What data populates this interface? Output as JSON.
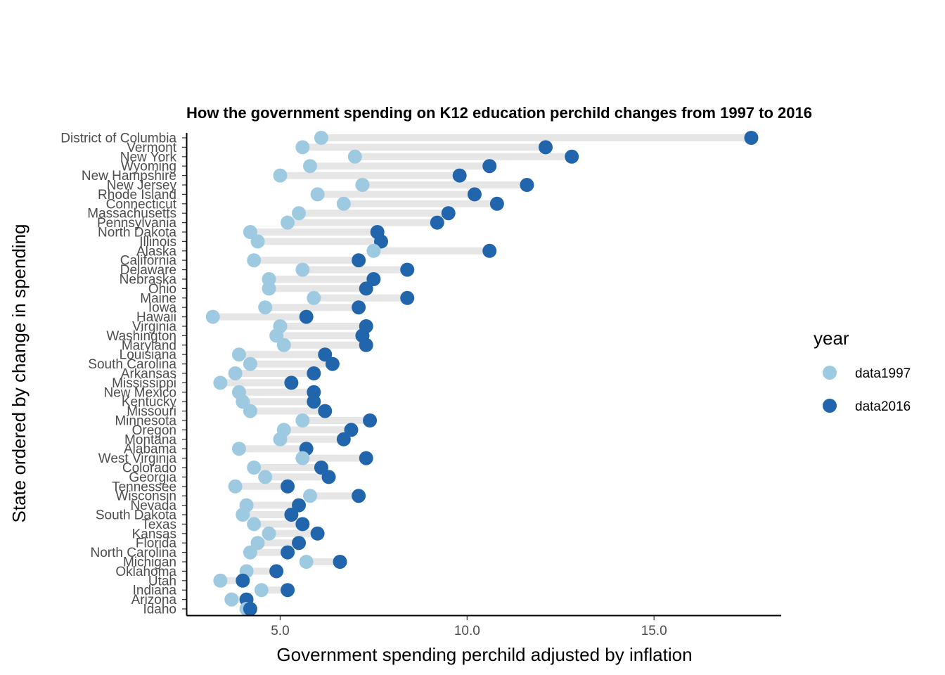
{
  "chart_data": {
    "type": "dumbbell",
    "title": "How the government spending on K12 education perchild changes from 1997 to 2016",
    "xlabel": "Government spending perchild adjusted by inflation",
    "ylabel": "State ordered by change in spending",
    "xlim": [
      2.5,
      18.4
    ],
    "x_ticks": [
      5,
      10,
      15
    ],
    "x_tick_labels": [
      "5.0",
      "10.0",
      "15.0"
    ],
    "grid": false,
    "legend": {
      "title": "year",
      "position": "right",
      "items": [
        {
          "label": "data1997",
          "color": "#9ecae1"
        },
        {
          "label": "data2016",
          "color": "#2166ac"
        }
      ]
    },
    "colors": {
      "data1997": "#9ecae1",
      "data2016": "#2166ac",
      "segment": "#e6e6e6"
    },
    "states": [
      "District of Columbia",
      "Vermont",
      "New York",
      "Wyoming",
      "New Hampshire",
      "New Jersey",
      "Rhode Island",
      "Connecticut",
      "Massachusetts",
      "Pennsylvania",
      "North Dakota",
      "Illinois",
      "Alaska",
      "California",
      "Delaware",
      "Nebraska",
      "Ohio",
      "Maine",
      "Iowa",
      "Hawaii",
      "Virginia",
      "Washington",
      "Maryland",
      "Louisiana",
      "South Carolina",
      "Arkansas",
      "Mississippi",
      "New Mexico",
      "Kentucky",
      "Missouri",
      "Minnesota",
      "Oregon",
      "Montana",
      "Alabama",
      "West Virginia",
      "Colorado",
      "Georgia",
      "Tennessee",
      "Wisconsin",
      "Nevada",
      "South Dakota",
      "Texas",
      "Kansas",
      "Florida",
      "North Carolina",
      "Michigan",
      "Oklahoma",
      "Utah",
      "Indiana",
      "Arizona",
      "Idaho"
    ],
    "series": [
      {
        "name": "data1997",
        "values": [
          6.1,
          5.6,
          7.0,
          5.8,
          5.0,
          7.2,
          6.0,
          6.7,
          5.5,
          5.2,
          4.2,
          4.4,
          7.5,
          4.3,
          5.6,
          4.7,
          4.7,
          5.9,
          4.6,
          3.2,
          5.0,
          4.9,
          5.1,
          3.9,
          4.2,
          3.8,
          3.4,
          3.9,
          4.0,
          4.2,
          5.6,
          5.1,
          5.0,
          3.9,
          5.6,
          4.3,
          4.6,
          3.8,
          5.8,
          4.1,
          4.0,
          4.3,
          4.7,
          4.4,
          4.2,
          5.7,
          4.1,
          3.4,
          4.5,
          3.7,
          4.1
        ]
      },
      {
        "name": "data2016",
        "values": [
          17.6,
          12.1,
          12.8,
          10.6,
          9.8,
          11.6,
          10.2,
          10.8,
          9.5,
          9.2,
          7.6,
          7.7,
          10.6,
          7.1,
          8.4,
          7.5,
          7.3,
          8.4,
          7.1,
          5.7,
          7.3,
          7.2,
          7.3,
          6.2,
          6.4,
          5.9,
          5.3,
          5.9,
          5.9,
          6.2,
          7.4,
          6.9,
          6.7,
          5.7,
          7.3,
          6.1,
          6.3,
          5.2,
          7.1,
          5.5,
          5.3,
          5.6,
          6.0,
          5.5,
          5.2,
          6.6,
          4.9,
          4.0,
          5.2,
          4.1,
          4.2
        ]
      }
    ]
  }
}
